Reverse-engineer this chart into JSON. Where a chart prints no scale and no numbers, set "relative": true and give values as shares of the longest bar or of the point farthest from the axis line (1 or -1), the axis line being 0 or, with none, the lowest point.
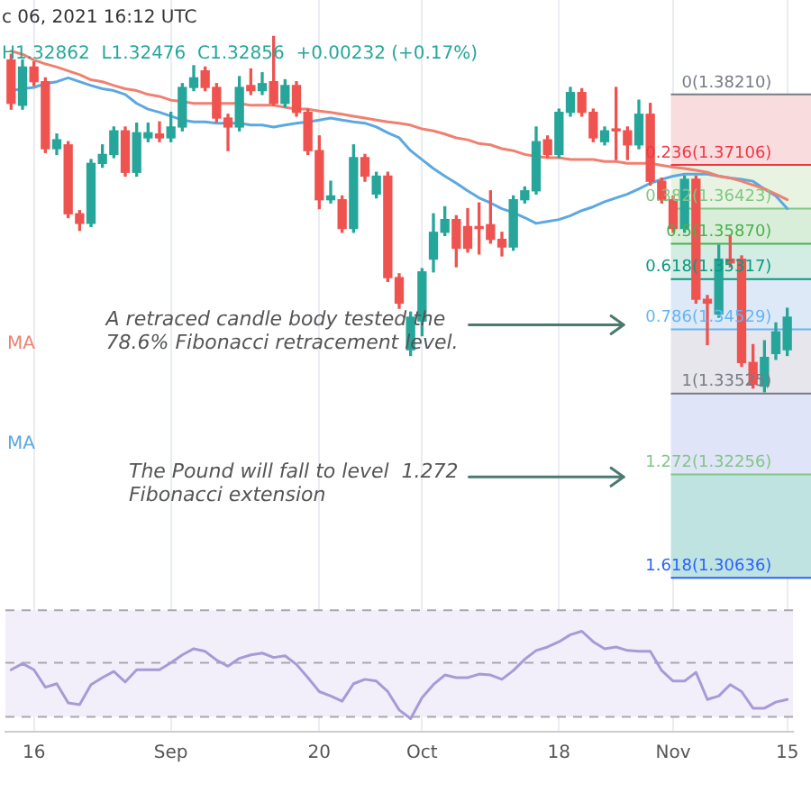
{
  "chart_data": [
    {
      "type": "candlestick",
      "categories": [
        null,
        null,
        null,
        null,
        null,
        null,
        null,
        null,
        null,
        null,
        null,
        null,
        null,
        null,
        null,
        null,
        null,
        null,
        null,
        null,
        null,
        null,
        null,
        null,
        null,
        null,
        null,
        null,
        null,
        null,
        null,
        null,
        null,
        null,
        null,
        null,
        null,
        null,
        null,
        null,
        null,
        null,
        null,
        null,
        null,
        null,
        null,
        null,
        null,
        null,
        null,
        null,
        null,
        null,
        null,
        null,
        null,
        null,
        null,
        null,
        null,
        null,
        null,
        null,
        null,
        null,
        null,
        null,
        null
      ],
      "grid": "x",
      "ohlc": [
        [
          1.3875,
          1.3884,
          1.3798,
          1.3807
        ],
        [
          1.3804,
          1.3875,
          1.3798,
          1.3864
        ],
        [
          1.3864,
          1.3872,
          1.3835,
          1.3841
        ],
        [
          1.3841,
          1.3847,
          1.373,
          1.3736
        ],
        [
          1.3736,
          1.3759,
          1.3727,
          1.375
        ],
        [
          1.3742,
          1.3747,
          1.3628,
          1.3634
        ],
        [
          1.3634,
          1.3639,
          1.3608,
          1.3619
        ],
        [
          1.3619,
          1.3719,
          1.3614,
          1.3713
        ],
        [
          1.3713,
          1.3742,
          1.3707,
          1.3727
        ],
        [
          1.3727,
          1.377,
          1.3722,
          1.3764
        ],
        [
          1.3764,
          1.377,
          1.3693,
          1.3699
        ],
        [
          1.3699,
          1.3776,
          1.3693,
          1.3761
        ],
        [
          1.3753,
          1.3776,
          1.3747,
          1.3761
        ],
        [
          1.3759,
          1.3778,
          1.3747,
          1.3753
        ],
        [
          1.3753,
          1.3793,
          1.3747,
          1.377
        ],
        [
          1.377,
          1.3838,
          1.3764,
          1.3832
        ],
        [
          1.3832,
          1.3866,
          1.3827,
          1.3847
        ],
        [
          1.3858,
          1.3864,
          1.3827,
          1.3832
        ],
        [
          1.3832,
          1.3838,
          1.3778,
          1.3784
        ],
        [
          1.3784,
          1.379,
          1.3733,
          1.377
        ],
        [
          1.377,
          1.3849,
          1.3764,
          1.3832
        ],
        [
          1.3835,
          1.3861,
          1.3821,
          1.3827
        ],
        [
          1.3827,
          1.3855,
          1.3821,
          1.3838
        ],
        [
          1.3841,
          1.3912,
          1.3804,
          1.3807
        ],
        [
          1.3807,
          1.3844,
          1.3801,
          1.3835
        ],
        [
          1.3835,
          1.3841,
          1.3787,
          1.3793
        ],
        [
          1.3793,
          1.3798,
          1.3727,
          1.3733
        ],
        [
          1.3733,
          1.3756,
          1.3642,
          1.3656
        ],
        [
          1.3656,
          1.3685,
          1.3651,
          1.3662
        ],
        [
          1.3656,
          1.3662,
          1.3605,
          1.3611
        ],
        [
          1.3611,
          1.3742,
          1.3605,
          1.3722
        ],
        [
          1.3722,
          1.3727,
          1.3685,
          1.3693
        ],
        [
          1.3665,
          1.3699,
          1.3659,
          1.3693
        ],
        [
          1.3693,
          1.3699,
          1.3528,
          1.3534
        ],
        [
          1.3534,
          1.354,
          1.3486,
          1.3494
        ],
        [
          1.3421,
          1.348,
          1.3412,
          1.3472
        ],
        [
          1.3466,
          1.3548,
          1.3443,
          1.3543
        ],
        [
          1.3563,
          1.3634,
          1.3543,
          1.3605
        ],
        [
          1.3605,
          1.3645,
          1.36,
          1.3625
        ],
        [
          1.3625,
          1.3631,
          1.3551,
          1.358
        ],
        [
          1.3614,
          1.3642,
          1.3574,
          1.358
        ],
        [
          1.3614,
          1.3651,
          1.3571,
          1.3611
        ],
        [
          1.3617,
          1.367,
          1.3588,
          1.3594
        ],
        [
          1.3594,
          1.3605,
          1.3568,
          1.3582
        ],
        [
          1.3582,
          1.3662,
          1.3577,
          1.3656
        ],
        [
          1.3656,
          1.3676,
          1.3651,
          1.367
        ],
        [
          1.367,
          1.377,
          1.3665,
          1.3747
        ],
        [
          1.375,
          1.3756,
          1.3722,
          1.3727
        ],
        [
          1.3727,
          1.3798,
          1.3722,
          1.3793
        ],
        [
          1.3793,
          1.3832,
          1.3787,
          1.3824
        ],
        [
          1.3824,
          1.383,
          1.3787,
          1.3793
        ],
        [
          1.3793,
          1.3798,
          1.3747,
          1.3753
        ],
        [
          1.3747,
          1.377,
          1.3742,
          1.3764
        ],
        [
          1.3767,
          1.3832,
          1.3719,
          1.3764
        ],
        [
          1.3764,
          1.377,
          1.3719,
          1.3742
        ],
        [
          1.3742,
          1.3812,
          1.3736,
          1.379
        ],
        [
          1.379,
          1.3807,
          1.3679,
          1.3685
        ],
        [
          1.3685,
          1.369,
          1.3651,
          1.3656
        ],
        [
          1.3656,
          1.3662,
          1.3605,
          1.3611
        ],
        [
          1.3611,
          1.3693,
          1.3605,
          1.3688
        ],
        [
          1.3688,
          1.3693,
          1.3494,
          1.35
        ],
        [
          1.35,
          1.3506,
          1.3429,
          1.3494
        ],
        [
          1.3477,
          1.3585,
          1.3472,
          1.3563
        ],
        [
          1.3563,
          1.36,
          1.3551,
          1.3557
        ],
        [
          1.3563,
          1.3568,
          1.3395,
          1.3401
        ],
        [
          1.3401,
          1.3429,
          1.3361,
          1.3367
        ],
        [
          1.3364,
          1.3435,
          1.3355,
          1.3409
        ],
        [
          1.3415,
          1.3463,
          1.3406,
          1.3449
        ],
        [
          1.3421,
          1.3486,
          1.3412,
          1.3472
        ]
      ],
      "colors": [
        "#ef5350",
        "#26a69a",
        "#ef5350",
        "#ef5350",
        "#26a69a",
        "#ef5350",
        "#ef5350",
        "#26a69a",
        "#26a69a",
        "#26a69a",
        "#ef5350",
        "#26a69a",
        "#26a69a",
        "#ef5350",
        "#26a69a",
        "#26a69a",
        "#26a69a",
        "#ef5350",
        "#ef5350",
        "#ef5350",
        "#26a69a",
        "#ef5350",
        "#26a69a",
        "#ef5350",
        "#26a69a",
        "#ef5350",
        "#ef5350",
        "#ef5350",
        "#26a69a",
        "#ef5350",
        "#26a69a",
        "#ef5350",
        "#26a69a",
        "#ef5350",
        "#ef5350",
        "#26a69a",
        "#26a69a",
        "#26a69a",
        "#26a69a",
        "#ef5350",
        "#ef5350",
        "#ef5350",
        "#ef5350",
        "#ef5350",
        "#26a69a",
        "#26a69a",
        "#26a69a",
        "#ef5350",
        "#26a69a",
        "#26a69a",
        "#ef5350",
        "#ef5350",
        "#26a69a",
        "#ef5350",
        "#ef5350",
        "#26a69a",
        "#ef5350",
        "#ef5350",
        "#ef5350",
        "#26a69a",
        "#ef5350",
        "#ef5350",
        "#26a69a",
        "#ef5350",
        "#ef5350",
        "#ef5350",
        "#26a69a",
        "#26a69a",
        "#26a69a"
      ],
      "series": [
        {
          "name": "MA",
          "type": "line",
          "color": "#f08070",
          "values": [
            1.3889,
            1.3884,
            1.3875,
            1.3869,
            1.3864,
            1.3858,
            1.3852,
            1.3844,
            1.3841,
            1.3835,
            1.383,
            1.3827,
            1.3821,
            1.3818,
            1.3812,
            1.381,
            1.3807,
            1.3807,
            1.3807,
            1.3807,
            1.3807,
            1.3804,
            1.3804,
            1.3804,
            1.3801,
            1.3798,
            1.3798,
            1.3795,
            1.3793,
            1.379,
            1.3787,
            1.3784,
            1.3781,
            1.3778,
            1.3776,
            1.3773,
            1.3767,
            1.3764,
            1.3759,
            1.3753,
            1.375,
            1.3744,
            1.3742,
            1.3736,
            1.3733,
            1.3727,
            1.3724,
            1.3722,
            1.3722,
            1.3719,
            1.3719,
            1.3719,
            1.3716,
            1.3716,
            1.3713,
            1.3713,
            1.3713,
            1.371,
            1.3707,
            1.3705,
            1.3702,
            1.3699,
            1.3693,
            1.369,
            1.3685,
            1.3679,
            1.3673,
            1.3665,
            1.3656
          ]
        },
        {
          "name": "MA",
          "type": "line",
          "color": "#5ca8e0",
          "values": [
            1.3827,
            1.383,
            1.3832,
            1.3838,
            1.3841,
            1.3847,
            1.3841,
            1.3835,
            1.383,
            1.3827,
            1.3821,
            1.3807,
            1.3798,
            1.3793,
            1.3787,
            1.3781,
            1.3778,
            1.3778,
            1.3776,
            1.3776,
            1.3776,
            1.3773,
            1.3773,
            1.377,
            1.3773,
            1.3776,
            1.3778,
            1.3781,
            1.3784,
            1.3781,
            1.3778,
            1.3776,
            1.377,
            1.3761,
            1.3753,
            1.3733,
            1.3719,
            1.3705,
            1.3693,
            1.3682,
            1.367,
            1.3659,
            1.3651,
            1.3642,
            1.3636,
            1.3628,
            1.3619,
            1.3622,
            1.3625,
            1.3631,
            1.3639,
            1.3645,
            1.3653,
            1.3659,
            1.3665,
            1.3673,
            1.3682,
            1.3688,
            1.3693,
            1.3696,
            1.3696,
            1.3696,
            1.3693,
            1.369,
            1.3688,
            1.3685,
            1.3673,
            1.3662,
            1.3642
          ]
        }
      ],
      "ylim": [
        1.3023,
        1.3969
      ],
      "tick_labels": false,
      "marker": "none",
      "legend": "left",
      "ref_lines": [
        {
          "axis": "y",
          "value": 1.3821,
          "label": "0(1.38210)",
          "color": "#787b86"
        },
        {
          "axis": "y",
          "value": 1.37106,
          "label": "0.236(1.37106)",
          "color": "#f23645"
        },
        {
          "axis": "y",
          "value": 1.36423,
          "label": "0.382(1.36423)",
          "color": "#81c784"
        },
        {
          "axis": "y",
          "value": 1.3587,
          "label": "0.5(1.35870)",
          "color": "#4caf50"
        },
        {
          "axis": "y",
          "value": 1.35317,
          "label": "0.618(1.35317)",
          "color": "#089981"
        },
        {
          "axis": "y",
          "value": 1.34529,
          "label": "0.786(1.34529)",
          "color": "#64b5f6"
        },
        {
          "axis": "y",
          "value": 1.33525,
          "label": "1(1.33525)",
          "color": "#787b86"
        },
        {
          "axis": "y",
          "value": 1.32256,
          "label": "1.272(1.32256)",
          "color": "#81c784"
        },
        {
          "axis": "y",
          "value": 1.30636,
          "label": "1.618(1.30636)",
          "color": "#2962ff"
        }
      ],
      "bands": [
        {
          "axis": "y",
          "from": 1.3821,
          "to": 1.37106,
          "color": "#f9dcdd"
        },
        {
          "axis": "y",
          "from": 1.37106,
          "to": 1.36423,
          "color": "#e8f3e1"
        },
        {
          "axis": "y",
          "from": 1.36423,
          "to": 1.3587,
          "color": "#d9eed8"
        },
        {
          "axis": "y",
          "from": 1.3587,
          "to": 1.35317,
          "color": "#d3ece4"
        },
        {
          "axis": "y",
          "from": 1.35317,
          "to": 1.34529,
          "color": "#dde9f6"
        },
        {
          "axis": "y",
          "from": 1.34529,
          "to": 1.33525,
          "color": "#e6e6ec"
        },
        {
          "axis": "y",
          "from": 1.33525,
          "to": 1.32256,
          "color": "#dfe4f8"
        },
        {
          "axis": "y",
          "from": 1.32256,
          "to": 1.30636,
          "color": "#bfe3e0"
        }
      ],
      "annotations": [
        "c 06, 2021 16:12 UTC",
        "H1.32862  L1.32476  C1.32856  +0.00232 (+0.17%)",
        "A retraced candle body tested the 78.6% Fibonacci retracement level.",
        "The Pound will fall to level  1.272 Fibonacci extension"
      ]
    },
    {
      "type": "line",
      "categories": [
        null,
        null,
        "16",
        null,
        null,
        null,
        null,
        null,
        null,
        null,
        null,
        null,
        null,
        null,
        "Sep",
        null,
        null,
        null,
        null,
        null,
        null,
        null,
        null,
        null,
        null,
        null,
        null,
        "20",
        null,
        null,
        null,
        null,
        null,
        null,
        null,
        null,
        "Oct",
        null,
        null,
        null,
        null,
        null,
        null,
        null,
        null,
        null,
        null,
        null,
        "18",
        null,
        null,
        null,
        null,
        null,
        null,
        null,
        null,
        null,
        "Nov",
        null,
        null,
        null,
        null,
        null,
        null,
        null,
        null,
        null,
        "15"
      ],
      "grid": "x",
      "values": [
        0.56,
        0.63,
        0.56,
        0.36,
        0.4,
        0.18,
        0.16,
        0.39,
        0.47,
        0.54,
        0.42,
        0.56,
        0.56,
        0.56,
        0.64,
        0.73,
        0.8,
        0.77,
        0.67,
        0.6,
        0.69,
        0.73,
        0.75,
        0.7,
        0.72,
        0.62,
        0.47,
        0.31,
        0.26,
        0.2,
        0.4,
        0.45,
        0.43,
        0.31,
        0.1,
        0,
        0.24,
        0.39,
        0.5,
        0.47,
        0.47,
        0.51,
        0.5,
        0.45,
        0.55,
        0.68,
        0.78,
        0.82,
        0.88,
        0.96,
        1,
        0.88,
        0.8,
        0.82,
        0.78,
        0.77,
        0.77,
        0.55,
        0.43,
        0.43,
        0.53,
        0.22,
        0.26,
        0.39,
        0.31,
        0.12,
        0.12,
        0.19,
        0.22
      ],
      "color": "#a99ad6",
      "relative": true,
      "marker": "none",
      "tick_labels": "x",
      "ref_lines": [
        {
          "axis": "y",
          "value": 1.24,
          "color": "#a8a8b0",
          "line_style": "dashed"
        },
        {
          "axis": "y",
          "value": 0.64,
          "color": "#a8a8b0",
          "line_style": "dashed"
        },
        {
          "axis": "y",
          "value": 0.02,
          "color": "#a8a8b0",
          "line_style": "dashed"
        }
      ],
      "bands": [
        {
          "axis": "y",
          "from": 0.02,
          "to": 1.24,
          "color": "#f2effb"
        }
      ]
    }
  ]
}
